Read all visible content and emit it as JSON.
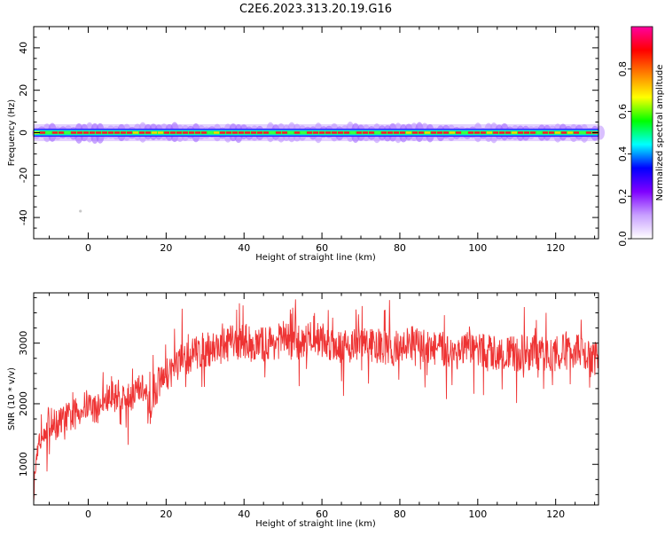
{
  "figure_title": "C2E6.2023.313.20.19.G16",
  "chart_data": [
    {
      "type": "heatmap",
      "panel": "spectrogram",
      "title": "",
      "xlabel": "Height of straight line (km)",
      "ylabel": "Frequency (Hz)",
      "xlim": [
        -14,
        131
      ],
      "ylim": [
        -50,
        50
      ],
      "xticks": [
        0,
        20,
        40,
        60,
        80,
        100,
        120
      ],
      "yticks": [
        -40,
        -20,
        0,
        20,
        40
      ],
      "xtick_labels": [
        "0",
        "20",
        "40",
        "60",
        "80",
        "100",
        "120"
      ],
      "ytick_labels": [
        "-40",
        "-20",
        "0",
        "20",
        "40"
      ],
      "band_center_hz": 0,
      "band_core_halfwidth_hz": 1,
      "band_outer_halfwidth_hz": 4,
      "isolated_point": {
        "x": -2,
        "y": -37
      },
      "grid": false,
      "colorbar": {
        "label": "Normalized spectral amplitude",
        "range": [
          0,
          1
        ],
        "ticks": [
          0.0,
          0.2,
          0.4,
          0.6,
          0.8
        ],
        "tick_labels": [
          "0.0",
          "0.2",
          "0.4",
          "0.6",
          "0.8"
        ],
        "colors": [
          "#ffffff",
          "#c8a0ff",
          "#7f00ff",
          "#0000ff",
          "#00ffff",
          "#00ff00",
          "#ffff00",
          "#ff8000",
          "#ff0000",
          "#ff00a0"
        ]
      }
    },
    {
      "type": "line",
      "panel": "snr",
      "title": "",
      "xlabel": "Height of straight line (km)",
      "ylabel": "SNR (10 * v/v)",
      "xlim": [
        -14,
        131
      ],
      "ylim": [
        330,
        3830
      ],
      "xticks": [
        0,
        20,
        40,
        60,
        80,
        100,
        120
      ],
      "yticks": [
        1000,
        2000,
        3000
      ],
      "xtick_labels": [
        "0",
        "20",
        "40",
        "60",
        "80",
        "100",
        "120"
      ],
      "ytick_labels": [
        "1000",
        "2000",
        "3000"
      ],
      "color": "#ee3333",
      "grid": false,
      "x": [
        -14,
        -13,
        -12,
        -10,
        -8,
        -6,
        -4,
        -2,
        0,
        2,
        4,
        6,
        8,
        10,
        12,
        14,
        16,
        18,
        20,
        22,
        25,
        28,
        31,
        34,
        37,
        40,
        43,
        46,
        50,
        54,
        58,
        62,
        66,
        70,
        74,
        78,
        82,
        86,
        90,
        94,
        98,
        102,
        106,
        110,
        114,
        118,
        122,
        126,
        129,
        131
      ],
      "y": [
        500,
        1100,
        1600,
        1700,
        1650,
        1750,
        1800,
        1900,
        2000,
        1900,
        2050,
        2100,
        2150,
        2050,
        2200,
        2250,
        1900,
        2350,
        2500,
        2600,
        2750,
        2850,
        2900,
        2950,
        3000,
        3050,
        2950,
        3000,
        3050,
        3000,
        3100,
        3000,
        2950,
        3000,
        2950,
        2900,
        3000,
        2950,
        2900,
        2850,
        2900,
        2850,
        2850,
        2800,
        2850,
        2800,
        2850,
        2900,
        2700,
        2800
      ]
    }
  ]
}
